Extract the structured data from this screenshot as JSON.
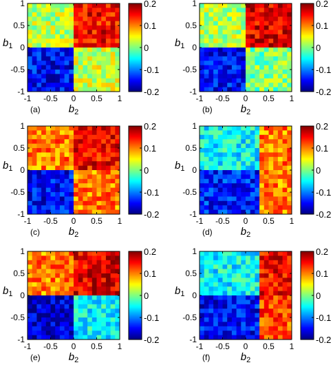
{
  "chart_data": [
    {
      "type": "heatmap",
      "panel_label": "(a)",
      "xlabel": "b2",
      "ylabel": "b1",
      "xlim": [
        -1,
        1
      ],
      "ylim": [
        -1,
        1
      ],
      "xticks": [
        "-1",
        "-0.5",
        "0",
        "0.5",
        "1"
      ],
      "yticks": [
        "1",
        "0.5",
        "0",
        "-0.5",
        "-1"
      ],
      "colorbar": {
        "range": [
          -0.2,
          0.2
        ],
        "ticks": [
          "0.2",
          "0.1",
          "0",
          "-0.1",
          "-0.2"
        ]
      },
      "quadrant_means": {
        "b1>0,b2<0": 0.02,
        "b1>0,b2>0": 0.15,
        "b1<0,b2<0": -0.15,
        "b1<0,b2>0": 0.03
      },
      "boundary_b1": 0.0,
      "boundary_b2": 0.0
    },
    {
      "type": "heatmap",
      "panel_label": "(b)",
      "xlabel": "b2",
      "ylabel": "b1",
      "xlim": [
        -1,
        1
      ],
      "ylim": [
        -1,
        1
      ],
      "xticks": [
        "-1",
        "-0.5",
        "0",
        "0.5",
        "1"
      ],
      "yticks": [
        "1",
        "0.5",
        "0",
        "-0.5",
        "-1"
      ],
      "colorbar": {
        "range": [
          -0.2,
          0.2
        ],
        "ticks": [
          "0.2",
          "0.1",
          "0",
          "-0.1",
          "-0.2"
        ]
      },
      "quadrant_means": {
        "b1>0,b2<0": 0.02,
        "b1>0,b2>0": 0.16,
        "b1<0,b2<0": -0.15,
        "b1<0,b2>0": 0.0
      },
      "boundary_b1": 0.0,
      "boundary_b2": 0.0
    },
    {
      "type": "heatmap",
      "panel_label": "(c)",
      "xlabel": "b2",
      "ylabel": "b1",
      "xlim": [
        -1,
        1
      ],
      "ylim": [
        -1,
        1
      ],
      "xticks": [
        "-1",
        "-0.5",
        "0",
        "0.5",
        "1"
      ],
      "yticks": [
        "1",
        "0.5",
        "0",
        "-0.5",
        "-1"
      ],
      "colorbar": {
        "range": [
          -0.2,
          0.2
        ],
        "ticks": [
          "0.2",
          "0.1",
          "0",
          "-0.1",
          "-0.2"
        ]
      },
      "quadrant_means": {
        "b1>0,b2<0": 0.1,
        "b1>0,b2>0": 0.15,
        "b1<0,b2<0": -0.15,
        "b1<0,b2>0": 0.1
      },
      "boundary_b1": 0.0,
      "boundary_b2": 0.0
    },
    {
      "type": "heatmap",
      "panel_label": "(d)",
      "xlabel": "b2",
      "ylabel": "b1",
      "xlim": [
        -1,
        1
      ],
      "ylim": [
        -1,
        1
      ],
      "xticks": [
        "-1",
        "-0.5",
        "0",
        "0.5",
        "1"
      ],
      "yticks": [
        "1",
        "0.5",
        "0",
        "-0.5",
        "-1"
      ],
      "colorbar": {
        "range": [
          -0.2,
          0.2
        ],
        "ticks": [
          "0.2",
          "0.1",
          "0",
          "-0.1",
          "-0.2"
        ]
      },
      "quadrant_means": {
        "b1>0,b2<0": -0.05,
        "b1>0,b2>0": 0.1,
        "b1<0,b2<0": -0.14,
        "b1<0,b2>0": 0.1
      },
      "boundary_b1": 0.0,
      "boundary_b2": 0.25
    },
    {
      "type": "heatmap",
      "panel_label": "(e)",
      "xlabel": "b2",
      "ylabel": "b1",
      "xlim": [
        -1,
        1
      ],
      "ylim": [
        -1,
        1
      ],
      "xticks": [
        "-1",
        "-0.5",
        "0",
        "0.5",
        "1"
      ],
      "yticks": [
        "1",
        "0.5",
        "0",
        "-0.5",
        "-1"
      ],
      "colorbar": {
        "range": [
          -0.2,
          0.2
        ],
        "ticks": [
          "0.2",
          "0.1",
          "0",
          "-0.1",
          "-0.2"
        ]
      },
      "quadrant_means": {
        "b1>0,b2<0": 0.1,
        "b1>0,b2>0": 0.16,
        "b1<0,b2<0": -0.17,
        "b1<0,b2>0": -0.05
      },
      "boundary_b1": 0.0,
      "boundary_b2": 0.0
    },
    {
      "type": "heatmap",
      "panel_label": "(f)",
      "xlabel": "b2",
      "ylabel": "b1",
      "xlim": [
        -1,
        1
      ],
      "ylim": [
        -1,
        1
      ],
      "xticks": [
        "-1",
        "-0.5",
        "0",
        "0.5",
        "1"
      ],
      "yticks": [
        "1",
        "0.5",
        "0",
        "-0.5",
        "-1"
      ],
      "colorbar": {
        "range": [
          -0.2,
          0.2
        ],
        "ticks": [
          "0.2",
          "0.1",
          "0",
          "-0.1",
          "-0.2"
        ]
      },
      "quadrant_means": {
        "b1>0,b2<0": -0.05,
        "b1>0,b2>0": 0.15,
        "b1<0,b2<0": -0.15,
        "b1<0,b2>0": 0.12
      },
      "boundary_b1": 0.0,
      "boundary_b2": 0.25
    }
  ]
}
